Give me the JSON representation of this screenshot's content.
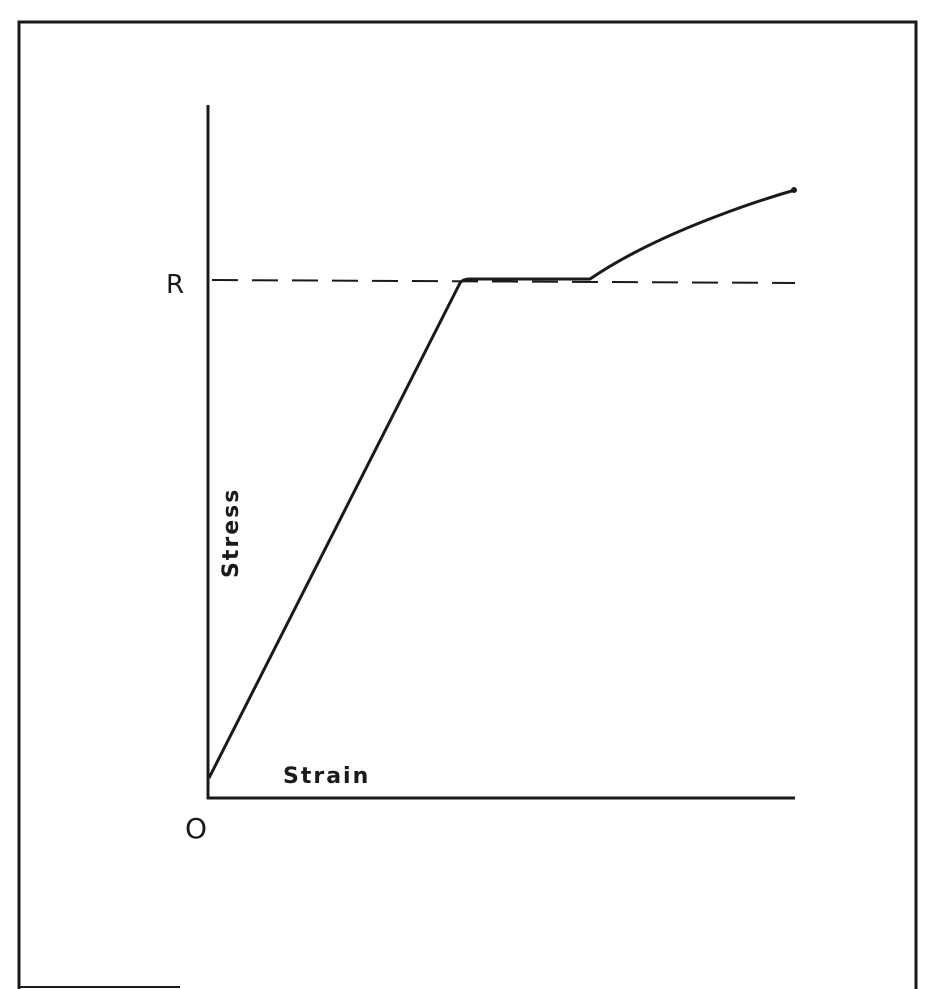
{
  "diagram": {
    "y_label": "Stress",
    "x_label": "Strain",
    "origin_label": "O",
    "yield_label": "R",
    "ink_color": "#1a1a1a"
  }
}
